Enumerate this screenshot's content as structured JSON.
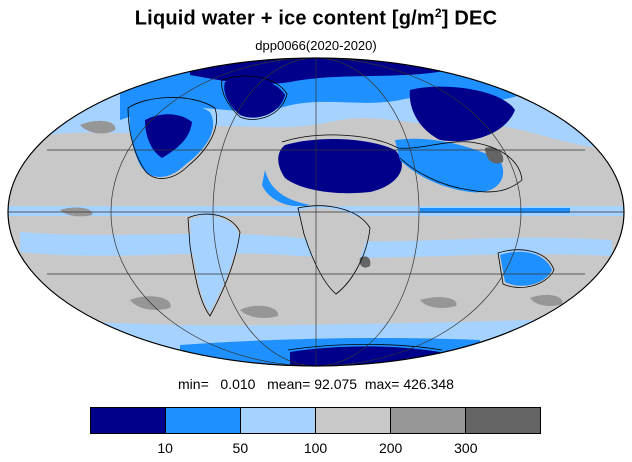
{
  "title": {
    "main": "Liquid water + ice content [g/m",
    "sup": "2",
    "end": "] DEC"
  },
  "subtitle": "dpp0066(2020-2020)",
  "stats": {
    "min_label": "min=",
    "min": "0.010",
    "mean_label": "mean=",
    "mean": "92.075",
    "max_label": "max=",
    "max": "426.348"
  },
  "colorbar": {
    "colors": [
      "#00008b",
      "#1e90ff",
      "#a6d2ff",
      "#c8c8c8",
      "#969696",
      "#646464"
    ],
    "ticks": [
      "10",
      "50",
      "100",
      "200",
      "300"
    ]
  },
  "map_colors": {
    "ocean_bg": "#c8c8c8",
    "band_light": "#a6d2ff",
    "band_mid": "#1e90ff",
    "band_dark": "#00008b",
    "patch_mid": "#969696",
    "patch_dark": "#646464",
    "coast": "#000000",
    "grid": "#333333"
  }
}
